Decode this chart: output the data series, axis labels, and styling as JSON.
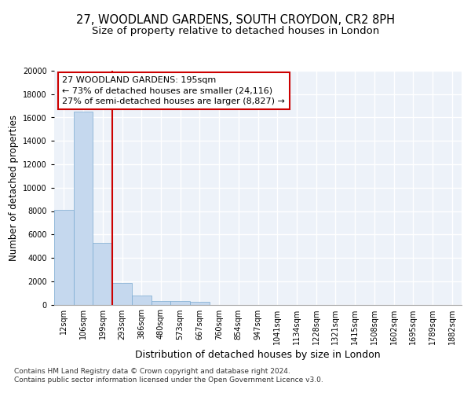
{
  "title_line1": "27, WOODLAND GARDENS, SOUTH CROYDON, CR2 8PH",
  "title_line2": "Size of property relative to detached houses in London",
  "xlabel": "Distribution of detached houses by size in London",
  "ylabel": "Number of detached properties",
  "bar_values": [
    8100,
    16500,
    5300,
    1850,
    750,
    320,
    270,
    220,
    0,
    0,
    0,
    0,
    0,
    0,
    0,
    0,
    0,
    0,
    0,
    0,
    0
  ],
  "bar_labels": [
    "12sqm",
    "106sqm",
    "199sqm",
    "293sqm",
    "386sqm",
    "480sqm",
    "573sqm",
    "667sqm",
    "760sqm",
    "854sqm",
    "947sqm",
    "1041sqm",
    "1134sqm",
    "1228sqm",
    "1321sqm",
    "1415sqm",
    "1508sqm",
    "1602sqm",
    "1695sqm",
    "1789sqm",
    "1882sqm"
  ],
  "bar_color": "#c5d8ee",
  "bar_edge_color": "#7aaad0",
  "vline_color": "#cc0000",
  "annotation_text": "27 WOODLAND GARDENS: 195sqm\n← 73% of detached houses are smaller (24,116)\n27% of semi-detached houses are larger (8,827) →",
  "annotation_box_color": "#ffffff",
  "annotation_box_edge": "#cc0000",
  "ylim": [
    0,
    20000
  ],
  "yticks": [
    0,
    2000,
    4000,
    6000,
    8000,
    10000,
    12000,
    14000,
    16000,
    18000,
    20000
  ],
  "footer_text": "Contains HM Land Registry data © Crown copyright and database right 2024.\nContains public sector information licensed under the Open Government Licence v3.0.",
  "bg_color": "#edf2f9",
  "grid_color": "#ffffff",
  "title_fontsize": 10.5,
  "subtitle_fontsize": 9.5,
  "ylabel_fontsize": 8.5,
  "xlabel_fontsize": 9,
  "tick_fontsize": 7,
  "annotation_fontsize": 8,
  "footer_fontsize": 6.5
}
